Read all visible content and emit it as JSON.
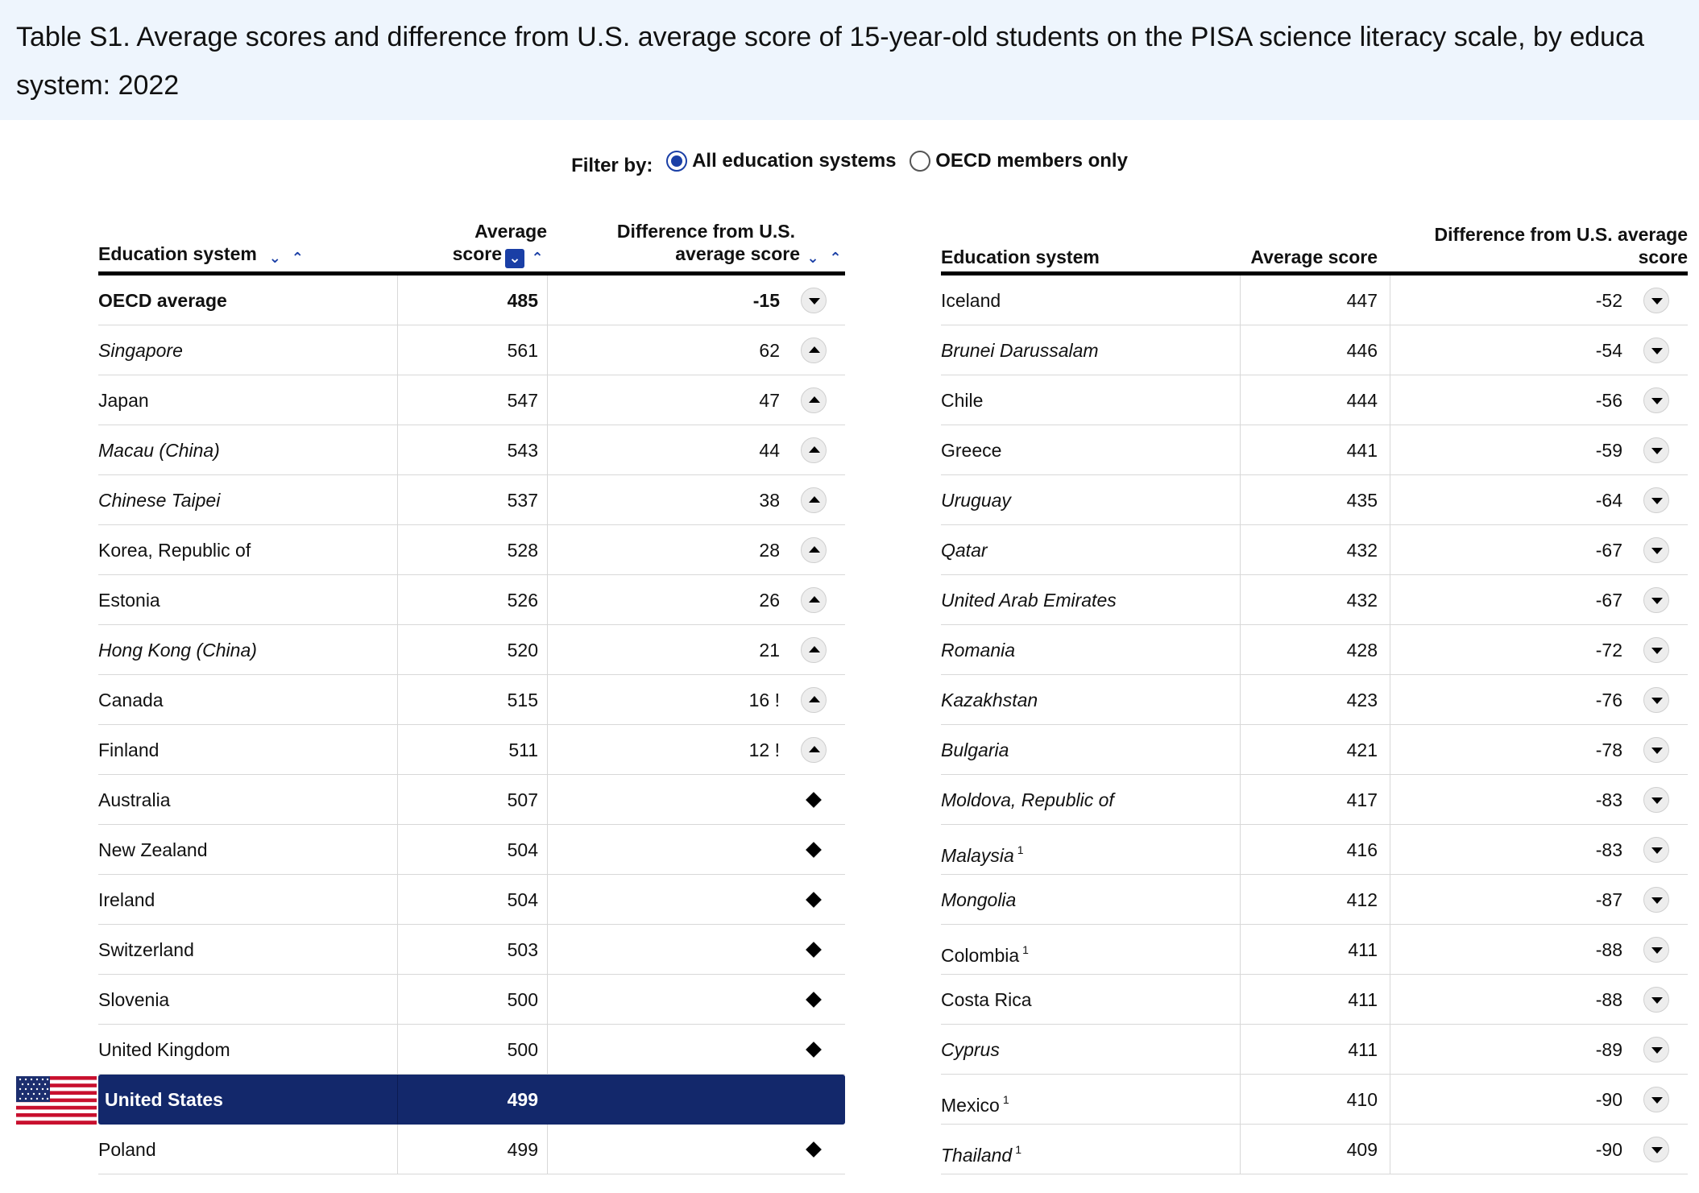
{
  "title": {
    "line1": "Table S1. Average scores and difference from U.S. average score of 15-year-old students on the PISA science literacy scale, by educa",
    "line2": "system: 2022"
  },
  "filter": {
    "label": "Filter by:",
    "options": [
      {
        "label": "All education systems",
        "selected": true
      },
      {
        "label": "OECD members only",
        "selected": false
      }
    ]
  },
  "left_table": {
    "headers": {
      "system": "Education system",
      "score_line1": "Average",
      "score_line2": "score",
      "diff_line1": "Difference from U.S.",
      "diff_line2": "average score"
    },
    "rows": [
      {
        "name": "OECD average",
        "score": "485",
        "diff": "-15",
        "indicator": "down",
        "style": "bold"
      },
      {
        "name": "Singapore",
        "score": "561",
        "diff": "62",
        "indicator": "up",
        "style": "italic"
      },
      {
        "name": "Japan",
        "score": "547",
        "diff": "47",
        "indicator": "up",
        "style": "normal"
      },
      {
        "name": "Macau (China)",
        "score": "543",
        "diff": "44",
        "indicator": "up",
        "style": "italic"
      },
      {
        "name": "Chinese Taipei",
        "score": "537",
        "diff": "38",
        "indicator": "up",
        "style": "italic"
      },
      {
        "name": "Korea, Republic of",
        "score": "528",
        "diff": "28",
        "indicator": "up",
        "style": "normal"
      },
      {
        "name": "Estonia",
        "score": "526",
        "diff": "26",
        "indicator": "up",
        "style": "normal"
      },
      {
        "name": "Hong Kong (China)",
        "score": "520",
        "diff": "21",
        "indicator": "up",
        "style": "italic"
      },
      {
        "name": "Canada",
        "score": "515",
        "diff": "16 !",
        "indicator": "up",
        "style": "normal"
      },
      {
        "name": "Finland",
        "score": "511",
        "diff": "12 !",
        "indicator": "up",
        "style": "normal"
      },
      {
        "name": "Australia",
        "score": "507",
        "diff": "",
        "indicator": "diamond",
        "style": "normal"
      },
      {
        "name": "New Zealand",
        "score": "504",
        "diff": "",
        "indicator": "diamond",
        "style": "normal"
      },
      {
        "name": "Ireland",
        "score": "504",
        "diff": "",
        "indicator": "diamond",
        "style": "normal"
      },
      {
        "name": "Switzerland",
        "score": "503",
        "diff": "",
        "indicator": "diamond",
        "style": "normal"
      },
      {
        "name": "Slovenia",
        "score": "500",
        "diff": "",
        "indicator": "diamond",
        "style": "normal"
      },
      {
        "name": "United Kingdom",
        "score": "500",
        "diff": "",
        "indicator": "diamond",
        "style": "normal"
      },
      {
        "name": "United States",
        "score": "499",
        "diff": "",
        "indicator": "none",
        "style": "us"
      },
      {
        "name": "Poland",
        "score": "499",
        "diff": "",
        "indicator": "diamond",
        "style": "normal"
      }
    ]
  },
  "right_table": {
    "headers": {
      "system": "Education system",
      "score": "Average score",
      "diff_line1": "Difference from U.S. average",
      "diff_line2": "score"
    },
    "rows": [
      {
        "name": "Iceland",
        "score": "447",
        "diff": "-52",
        "indicator": "down",
        "style": "normal",
        "note": ""
      },
      {
        "name": "Brunei Darussalam",
        "score": "446",
        "diff": "-54",
        "indicator": "down",
        "style": "italic",
        "note": ""
      },
      {
        "name": "Chile",
        "score": "444",
        "diff": "-56",
        "indicator": "down",
        "style": "normal",
        "note": ""
      },
      {
        "name": "Greece",
        "score": "441",
        "diff": "-59",
        "indicator": "down",
        "style": "normal",
        "note": ""
      },
      {
        "name": "Uruguay",
        "score": "435",
        "diff": "-64",
        "indicator": "down",
        "style": "italic",
        "note": ""
      },
      {
        "name": "Qatar",
        "score": "432",
        "diff": "-67",
        "indicator": "down",
        "style": "italic",
        "note": ""
      },
      {
        "name": "United Arab Emirates",
        "score": "432",
        "diff": "-67",
        "indicator": "down",
        "style": "italic",
        "note": ""
      },
      {
        "name": "Romania",
        "score": "428",
        "diff": "-72",
        "indicator": "down",
        "style": "italic",
        "note": ""
      },
      {
        "name": "Kazakhstan",
        "score": "423",
        "diff": "-76",
        "indicator": "down",
        "style": "italic",
        "note": ""
      },
      {
        "name": "Bulgaria",
        "score": "421",
        "diff": "-78",
        "indicator": "down",
        "style": "italic",
        "note": ""
      },
      {
        "name": "Moldova, Republic of",
        "score": "417",
        "diff": "-83",
        "indicator": "down",
        "style": "italic",
        "note": ""
      },
      {
        "name": "Malaysia",
        "score": "416",
        "diff": "-83",
        "indicator": "down",
        "style": "italic",
        "note": "1"
      },
      {
        "name": "Mongolia",
        "score": "412",
        "diff": "-87",
        "indicator": "down",
        "style": "italic",
        "note": ""
      },
      {
        "name": "Colombia",
        "score": "411",
        "diff": "-88",
        "indicator": "down",
        "style": "normal",
        "note": "1"
      },
      {
        "name": "Costa Rica",
        "score": "411",
        "diff": "-88",
        "indicator": "down",
        "style": "normal",
        "note": ""
      },
      {
        "name": "Cyprus",
        "score": "411",
        "diff": "-89",
        "indicator": "down",
        "style": "italic",
        "note": ""
      },
      {
        "name": "Mexico",
        "score": "410",
        "diff": "-90",
        "indicator": "down",
        "style": "normal",
        "note": "1"
      },
      {
        "name": "Thailand",
        "score": "409",
        "diff": "-90",
        "indicator": "down",
        "style": "italic",
        "note": "1"
      }
    ]
  },
  "colors": {
    "title_bg": "#eef5fd",
    "us_row_bg": "#13286b",
    "accent": "#1a3fa6"
  },
  "icons": {
    "up": "triangle-up-icon",
    "down": "triangle-down-icon",
    "diamond": "diamond-icon",
    "flag": "us-flag-icon"
  }
}
